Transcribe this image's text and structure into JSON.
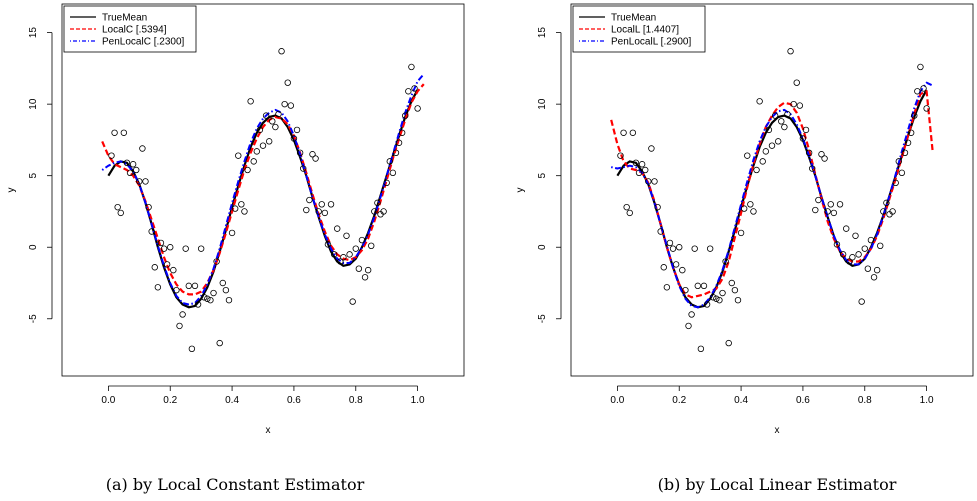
{
  "chart_data": [
    {
      "type": "line",
      "caption": "(a) by Local Constant Estimator",
      "xlabel": "x",
      "ylabel": "y",
      "xlim": [
        -0.15,
        1.15
      ],
      "ylim": [
        -9,
        17
      ],
      "xticks": [
        0.0,
        0.2,
        0.4,
        0.6,
        0.8,
        1.0
      ],
      "xtick_labels": [
        "0.0",
        "0.2",
        "0.4",
        "0.6",
        "0.8",
        "1.0"
      ],
      "yticks": [
        -5,
        0,
        5,
        10,
        15
      ],
      "ytick_labels": [
        "-5",
        "0",
        "5",
        "10",
        "15"
      ],
      "legend_position": "top-left",
      "series": [
        {
          "name": "TrueMean",
          "color": "#000000",
          "dash": "solid",
          "x": [
            0.0,
            0.02,
            0.04,
            0.06,
            0.08,
            0.1,
            0.12,
            0.14,
            0.16,
            0.18,
            0.2,
            0.22,
            0.24,
            0.26,
            0.28,
            0.3,
            0.32,
            0.34,
            0.36,
            0.38,
            0.4,
            0.42,
            0.44,
            0.46,
            0.48,
            0.5,
            0.52,
            0.54,
            0.56,
            0.58,
            0.6,
            0.62,
            0.64,
            0.66,
            0.68,
            0.7,
            0.72,
            0.74,
            0.76,
            0.78,
            0.8,
            0.82,
            0.84,
            0.86,
            0.88,
            0.9,
            0.92,
            0.94,
            0.96,
            0.98,
            1.0
          ],
          "y": [
            5.0,
            5.7,
            6.0,
            5.9,
            5.3,
            4.4,
            3.1,
            1.6,
            0.0,
            -1.4,
            -2.6,
            -3.5,
            -4.0,
            -4.2,
            -4.1,
            -3.6,
            -2.8,
            -1.7,
            -0.3,
            1.2,
            2.8,
            4.3,
            5.7,
            7.0,
            8.0,
            8.7,
            9.1,
            9.2,
            9.0,
            8.4,
            7.5,
            6.3,
            5.0,
            3.5,
            2.1,
            0.8,
            -0.3,
            -1.0,
            -1.3,
            -1.2,
            -0.8,
            0.0,
            1.0,
            2.2,
            3.6,
            5.0,
            6.4,
            7.8,
            9.1,
            10.2,
            11.0
          ]
        },
        {
          "name": "LocalC [.5394]",
          "color": "#ff0000",
          "dash": "dashed",
          "x": [
            -0.02,
            0.0,
            0.02,
            0.04,
            0.06,
            0.08,
            0.1,
            0.12,
            0.14,
            0.16,
            0.18,
            0.2,
            0.22,
            0.24,
            0.26,
            0.28,
            0.3,
            0.32,
            0.34,
            0.36,
            0.38,
            0.4,
            0.42,
            0.44,
            0.46,
            0.48,
            0.5,
            0.52,
            0.54,
            0.56,
            0.58,
            0.6,
            0.62,
            0.64,
            0.66,
            0.68,
            0.7,
            0.72,
            0.74,
            0.76,
            0.78,
            0.8,
            0.82,
            0.84,
            0.86,
            0.88,
            0.9,
            0.92,
            0.94,
            0.96,
            0.98,
            1.0,
            1.02
          ],
          "y": [
            7.4,
            6.4,
            5.8,
            5.6,
            5.4,
            5.0,
            4.3,
            3.2,
            1.9,
            0.6,
            -0.7,
            -1.8,
            -2.6,
            -3.1,
            -3.3,
            -3.3,
            -3.1,
            -2.5,
            -1.6,
            -0.4,
            1.0,
            2.5,
            4.0,
            5.4,
            6.6,
            7.6,
            8.4,
            8.9,
            9.1,
            9.0,
            8.6,
            7.8,
            6.6,
            5.2,
            3.7,
            2.3,
            1.1,
            0.1,
            -0.5,
            -0.8,
            -0.9,
            -0.7,
            -0.2,
            0.6,
            1.8,
            3.2,
            4.7,
            6.2,
            7.6,
            8.9,
            10.1,
            10.9,
            11.4
          ]
        },
        {
          "name": "PenLocalC [.2300]",
          "color": "#0000ff",
          "dash": "dotdash",
          "x": [
            -0.02,
            0.0,
            0.02,
            0.04,
            0.06,
            0.08,
            0.1,
            0.12,
            0.14,
            0.16,
            0.18,
            0.2,
            0.22,
            0.24,
            0.26,
            0.28,
            0.3,
            0.32,
            0.34,
            0.36,
            0.38,
            0.4,
            0.42,
            0.44,
            0.46,
            0.48,
            0.5,
            0.52,
            0.54,
            0.56,
            0.58,
            0.6,
            0.62,
            0.64,
            0.66,
            0.68,
            0.7,
            0.72,
            0.74,
            0.76,
            0.78,
            0.8,
            0.82,
            0.84,
            0.86,
            0.88,
            0.9,
            0.92,
            0.94,
            0.96,
            0.98,
            1.0,
            1.02
          ],
          "y": [
            5.4,
            5.7,
            5.9,
            6.0,
            5.8,
            5.3,
            4.4,
            3.1,
            1.6,
            0.1,
            -1.3,
            -2.5,
            -3.4,
            -3.9,
            -4.0,
            -3.9,
            -3.4,
            -2.6,
            -1.5,
            -0.1,
            1.5,
            3.1,
            4.6,
            6.0,
            7.3,
            8.3,
            9.0,
            9.4,
            9.6,
            9.4,
            8.8,
            7.8,
            6.5,
            5.0,
            3.5,
            2.1,
            0.9,
            -0.1,
            -0.8,
            -1.1,
            -1.1,
            -0.7,
            0.0,
            0.9,
            2.1,
            3.5,
            5.0,
            6.5,
            8.0,
            9.4,
            10.6,
            11.6,
            12.1
          ]
        }
      ],
      "observations": {
        "x": [
          0.01,
          0.02,
          0.03,
          0.04,
          0.05,
          0.06,
          0.07,
          0.08,
          0.09,
          0.1,
          0.11,
          0.12,
          0.13,
          0.14,
          0.15,
          0.16,
          0.17,
          0.18,
          0.19,
          0.2,
          0.21,
          0.22,
          0.23,
          0.24,
          0.25,
          0.26,
          0.27,
          0.28,
          0.29,
          0.3,
          0.31,
          0.32,
          0.33,
          0.34,
          0.35,
          0.36,
          0.37,
          0.38,
          0.39,
          0.4,
          0.41,
          0.42,
          0.43,
          0.44,
          0.45,
          0.46,
          0.47,
          0.48,
          0.49,
          0.5,
          0.51,
          0.52,
          0.53,
          0.54,
          0.55,
          0.56,
          0.57,
          0.58,
          0.59,
          0.6,
          0.61,
          0.62,
          0.63,
          0.64,
          0.65,
          0.66,
          0.67,
          0.68,
          0.69,
          0.7,
          0.71,
          0.72,
          0.73,
          0.74,
          0.75,
          0.76,
          0.77,
          0.78,
          0.79,
          0.8,
          0.81,
          0.82,
          0.83,
          0.84,
          0.85,
          0.86,
          0.87,
          0.88,
          0.89,
          0.9,
          0.91,
          0.92,
          0.93,
          0.94,
          0.95,
          0.96,
          0.97,
          0.98,
          0.99,
          1.0
        ],
        "y": [
          6.4,
          8.0,
          2.8,
          2.4,
          8.0,
          5.9,
          5.2,
          5.8,
          5.4,
          4.6,
          6.9,
          4.6,
          2.8,
          1.1,
          -1.4,
          -2.8,
          0.3,
          -0.1,
          -1.2,
          0.0,
          -1.6,
          -3.0,
          -5.5,
          -4.7,
          -0.1,
          -2.7,
          -7.1,
          -2.7,
          -4.0,
          -0.1,
          -3.5,
          -3.6,
          -3.7,
          -3.2,
          -1.0,
          -6.7,
          -2.5,
          -3.0,
          -3.7,
          1.0,
          2.7,
          6.4,
          3.0,
          2.5,
          5.4,
          10.2,
          6.0,
          6.7,
          8.2,
          7.1,
          9.2,
          7.4,
          8.8,
          8.4,
          9.3,
          13.7,
          10.0,
          11.5,
          9.9,
          7.6,
          8.2,
          6.6,
          5.5,
          2.6,
          3.3,
          6.5,
          6.2,
          2.5,
          3.0,
          2.4,
          0.2,
          3.0,
          -0.5,
          1.3,
          -1.0,
          -0.7,
          0.8,
          -0.5,
          -3.8,
          -0.1,
          -1.5,
          0.5,
          -2.1,
          -1.6,
          0.1,
          2.5,
          3.1,
          2.3,
          2.5,
          4.5,
          6.0,
          5.2,
          6.6,
          7.3,
          8.0,
          9.2,
          10.9,
          12.6,
          11.1,
          9.7
        ]
      }
    },
    {
      "type": "line",
      "caption": "(b) by Local Linear Estimator",
      "xlabel": "x",
      "ylabel": "y",
      "xlim": [
        -0.15,
        1.15
      ],
      "ylim": [
        -9,
        17
      ],
      "xticks": [
        0.0,
        0.2,
        0.4,
        0.6,
        0.8,
        1.0
      ],
      "xtick_labels": [
        "0.0",
        "0.2",
        "0.4",
        "0.6",
        "0.8",
        "1.0"
      ],
      "yticks": [
        -5,
        0,
        5,
        10,
        15
      ],
      "ytick_labels": [
        "-5",
        "0",
        "5",
        "10",
        "15"
      ],
      "legend_position": "top-left",
      "series": [
        {
          "name": "TrueMean",
          "color": "#000000",
          "dash": "solid",
          "x": [
            0.0,
            0.02,
            0.04,
            0.06,
            0.08,
            0.1,
            0.12,
            0.14,
            0.16,
            0.18,
            0.2,
            0.22,
            0.24,
            0.26,
            0.28,
            0.3,
            0.32,
            0.34,
            0.36,
            0.38,
            0.4,
            0.42,
            0.44,
            0.46,
            0.48,
            0.5,
            0.52,
            0.54,
            0.56,
            0.58,
            0.6,
            0.62,
            0.64,
            0.66,
            0.68,
            0.7,
            0.72,
            0.74,
            0.76,
            0.78,
            0.8,
            0.82,
            0.84,
            0.86,
            0.88,
            0.9,
            0.92,
            0.94,
            0.96,
            0.98,
            1.0
          ],
          "y": [
            5.0,
            5.7,
            6.0,
            5.9,
            5.3,
            4.4,
            3.1,
            1.6,
            0.0,
            -1.4,
            -2.6,
            -3.5,
            -4.0,
            -4.2,
            -4.1,
            -3.6,
            -2.8,
            -1.7,
            -0.3,
            1.2,
            2.8,
            4.3,
            5.7,
            7.0,
            8.0,
            8.7,
            9.1,
            9.2,
            9.0,
            8.4,
            7.5,
            6.3,
            5.0,
            3.5,
            2.1,
            0.8,
            -0.3,
            -1.0,
            -1.3,
            -1.2,
            -0.8,
            0.0,
            1.0,
            2.2,
            3.6,
            5.0,
            6.4,
            7.8,
            9.1,
            10.2,
            11.0
          ]
        },
        {
          "name": "LocalL [1.4407]",
          "color": "#ff0000",
          "dash": "dashed",
          "x": [
            -0.02,
            0.0,
            0.02,
            0.04,
            0.06,
            0.08,
            0.1,
            0.12,
            0.14,
            0.16,
            0.18,
            0.2,
            0.22,
            0.24,
            0.26,
            0.28,
            0.3,
            0.32,
            0.34,
            0.36,
            0.38,
            0.4,
            0.42,
            0.44,
            0.46,
            0.48,
            0.5,
            0.52,
            0.54,
            0.56,
            0.58,
            0.6,
            0.62,
            0.64,
            0.66,
            0.68,
            0.7,
            0.72,
            0.74,
            0.76,
            0.78,
            0.8,
            0.82,
            0.84,
            0.86,
            0.88,
            0.9,
            0.92,
            0.94,
            0.96,
            0.98,
            1.0,
            1.02
          ],
          "y": [
            8.9,
            7.2,
            6.0,
            5.5,
            5.4,
            5.2,
            4.5,
            3.2,
            1.6,
            0.0,
            -1.4,
            -2.6,
            -3.3,
            -3.5,
            -3.4,
            -3.3,
            -3.1,
            -2.9,
            -2.2,
            -1.0,
            0.7,
            2.4,
            4.2,
            5.8,
            7.2,
            8.4,
            9.2,
            9.8,
            10.1,
            10.0,
            9.4,
            8.3,
            6.8,
            5.1,
            3.4,
            1.8,
            0.6,
            -0.3,
            -0.8,
            -1.0,
            -1.0,
            -0.7,
            -0.1,
            0.8,
            2.0,
            3.4,
            4.8,
            6.3,
            7.8,
            9.3,
            10.7,
            10.9,
            6.6
          ]
        },
        {
          "name": "PenLocalL [.2900]",
          "color": "#0000ff",
          "dash": "dotdash",
          "x": [
            -0.02,
            0.0,
            0.02,
            0.04,
            0.06,
            0.08,
            0.1,
            0.12,
            0.14,
            0.16,
            0.18,
            0.2,
            0.22,
            0.24,
            0.26,
            0.28,
            0.3,
            0.32,
            0.34,
            0.36,
            0.38,
            0.4,
            0.42,
            0.44,
            0.46,
            0.48,
            0.5,
            0.52,
            0.54,
            0.56,
            0.58,
            0.6,
            0.62,
            0.64,
            0.66,
            0.68,
            0.7,
            0.72,
            0.74,
            0.76,
            0.78,
            0.8,
            0.82,
            0.84,
            0.86,
            0.88,
            0.9,
            0.92,
            0.94,
            0.96,
            0.98,
            1.0,
            1.02
          ],
          "y": [
            5.6,
            5.5,
            5.6,
            5.7,
            5.6,
            5.2,
            4.4,
            3.1,
            1.6,
            0.1,
            -1.4,
            -2.7,
            -3.6,
            -4.1,
            -4.2,
            -4.0,
            -3.5,
            -2.7,
            -1.6,
            -0.2,
            1.4,
            3.0,
            4.6,
            6.1,
            7.4,
            8.4,
            9.1,
            9.5,
            9.6,
            9.3,
            8.6,
            7.6,
            6.4,
            5.0,
            3.5,
            2.1,
            0.8,
            -0.2,
            -0.9,
            -1.2,
            -1.2,
            -0.8,
            -0.1,
            0.9,
            2.2,
            3.6,
            5.1,
            6.7,
            8.2,
            9.7,
            10.9,
            11.5,
            11.3
          ]
        }
      ],
      "observations": {
        "x": [
          0.01,
          0.02,
          0.03,
          0.04,
          0.05,
          0.06,
          0.07,
          0.08,
          0.09,
          0.1,
          0.11,
          0.12,
          0.13,
          0.14,
          0.15,
          0.16,
          0.17,
          0.18,
          0.19,
          0.2,
          0.21,
          0.22,
          0.23,
          0.24,
          0.25,
          0.26,
          0.27,
          0.28,
          0.29,
          0.3,
          0.31,
          0.32,
          0.33,
          0.34,
          0.35,
          0.36,
          0.37,
          0.38,
          0.39,
          0.4,
          0.41,
          0.42,
          0.43,
          0.44,
          0.45,
          0.46,
          0.47,
          0.48,
          0.49,
          0.5,
          0.51,
          0.52,
          0.53,
          0.54,
          0.55,
          0.56,
          0.57,
          0.58,
          0.59,
          0.6,
          0.61,
          0.62,
          0.63,
          0.64,
          0.65,
          0.66,
          0.67,
          0.68,
          0.69,
          0.7,
          0.71,
          0.72,
          0.73,
          0.74,
          0.75,
          0.76,
          0.77,
          0.78,
          0.79,
          0.8,
          0.81,
          0.82,
          0.83,
          0.84,
          0.85,
          0.86,
          0.87,
          0.88,
          0.89,
          0.9,
          0.91,
          0.92,
          0.93,
          0.94,
          0.95,
          0.96,
          0.97,
          0.98,
          0.99,
          1.0
        ],
        "y": [
          6.4,
          8.0,
          2.8,
          2.4,
          8.0,
          5.9,
          5.2,
          5.8,
          5.4,
          4.6,
          6.9,
          4.6,
          2.8,
          1.1,
          -1.4,
          -2.8,
          0.3,
          -0.1,
          -1.2,
          0.0,
          -1.6,
          -3.0,
          -5.5,
          -4.7,
          -0.1,
          -2.7,
          -7.1,
          -2.7,
          -4.0,
          -0.1,
          -3.5,
          -3.6,
          -3.7,
          -3.2,
          -1.0,
          -6.7,
          -2.5,
          -3.0,
          -3.7,
          1.0,
          2.7,
          6.4,
          3.0,
          2.5,
          5.4,
          10.2,
          6.0,
          6.7,
          8.2,
          7.1,
          9.2,
          7.4,
          8.8,
          8.4,
          9.3,
          13.7,
          10.0,
          11.5,
          9.9,
          7.6,
          8.2,
          6.6,
          5.5,
          2.6,
          3.3,
          6.5,
          6.2,
          2.5,
          3.0,
          2.4,
          0.2,
          3.0,
          -0.5,
          1.3,
          -1.0,
          -0.7,
          0.8,
          -0.5,
          -3.8,
          -0.1,
          -1.5,
          0.5,
          -2.1,
          -1.6,
          0.1,
          2.5,
          3.1,
          2.3,
          2.5,
          4.5,
          6.0,
          5.2,
          6.6,
          7.3,
          8.0,
          9.2,
          10.9,
          12.6,
          11.1,
          9.7
        ]
      }
    }
  ]
}
